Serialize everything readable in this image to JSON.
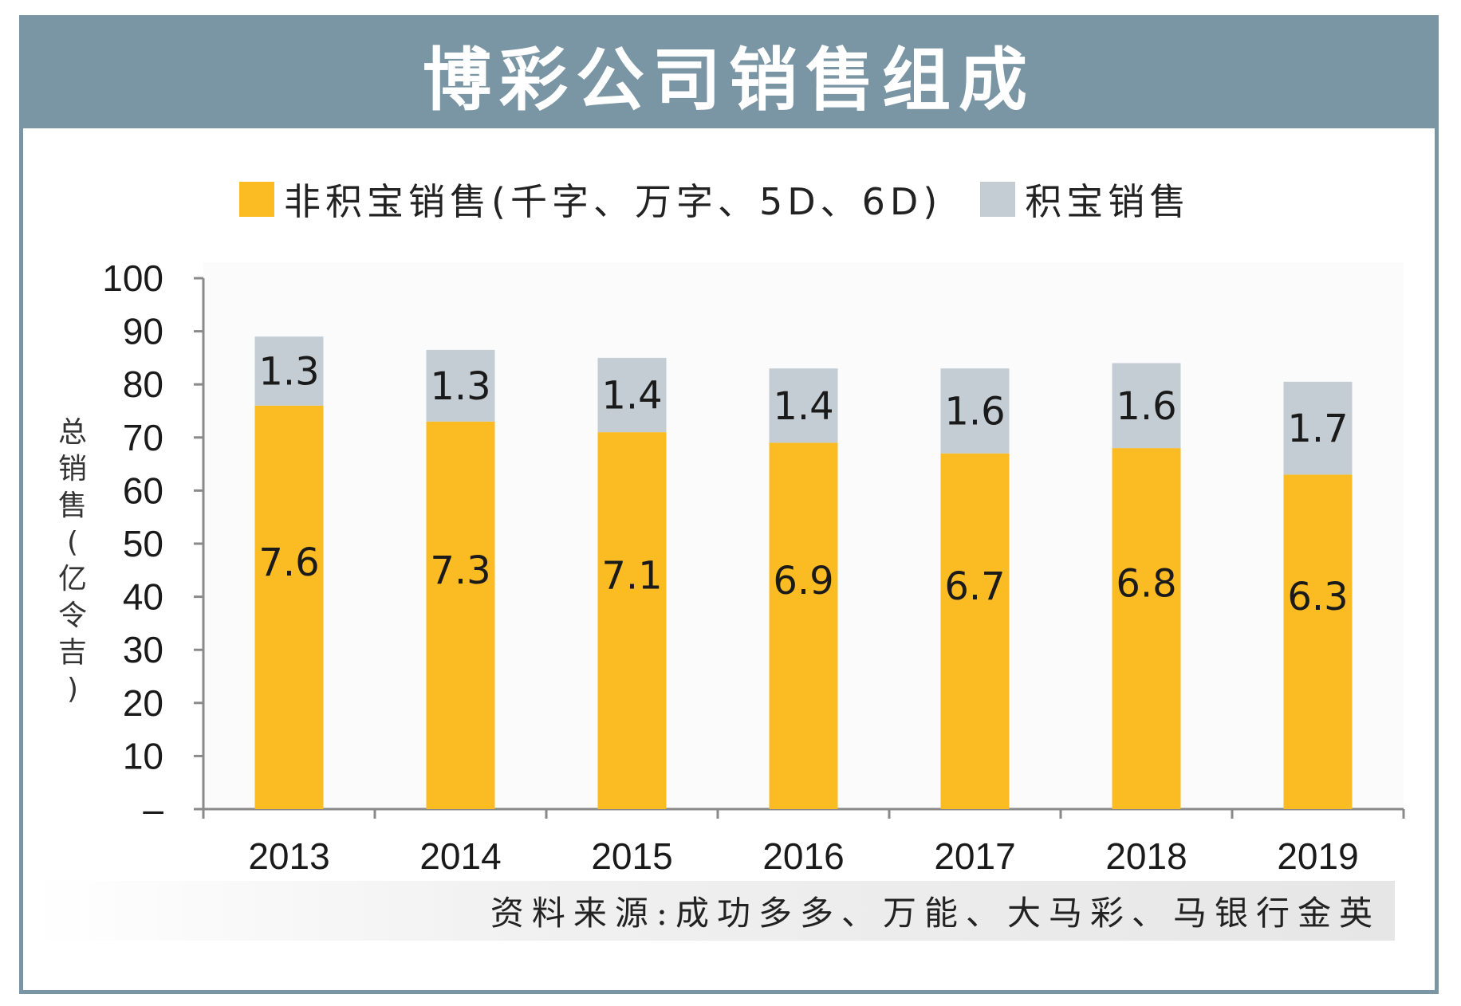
{
  "title": "博彩公司销售组成",
  "legend": [
    {
      "label": "非积宝销售(千字、万字、5D、6D)",
      "color": "#fbbb22"
    },
    {
      "label": "积宝销售",
      "color": "#c3cdd3"
    }
  ],
  "y_axis_title_chars": [
    "总",
    "销",
    "售",
    "(",
    "亿",
    "令",
    "吉",
    ")"
  ],
  "source": "资料来源:成功多多、万能、大马彩、马银行金英",
  "colors": {
    "frame": "#7a95a3",
    "bar_main": "#fbbb22",
    "bar_top": "#c3cdd3",
    "axis": "#8a8a8a"
  },
  "chart_data": {
    "type": "bar",
    "stacked": true,
    "categories": [
      "2013",
      "2014",
      "2015",
      "2016",
      "2017",
      "2018",
      "2019"
    ],
    "series": [
      {
        "name": "非积宝销售(千字、万字、5D、6D)",
        "values": [
          7.6,
          7.3,
          7.1,
          6.9,
          6.7,
          6.8,
          6.3
        ],
        "plot_values": [
          76,
          73,
          71,
          69,
          67,
          68,
          63
        ]
      },
      {
        "name": "积宝销售",
        "values": [
          1.3,
          1.3,
          1.4,
          1.4,
          1.6,
          1.6,
          1.7
        ],
        "plot_values": [
          13,
          13.5,
          14,
          14,
          16,
          16,
          17.5
        ]
      }
    ],
    "ylim": [
      0,
      100
    ],
    "yticks": [
      "–",
      "10",
      "20",
      "30",
      "40",
      "50",
      "60",
      "70",
      "80",
      "90",
      "100"
    ],
    "ylabel": "总销售(亿令吉)",
    "xlabel": ""
  }
}
